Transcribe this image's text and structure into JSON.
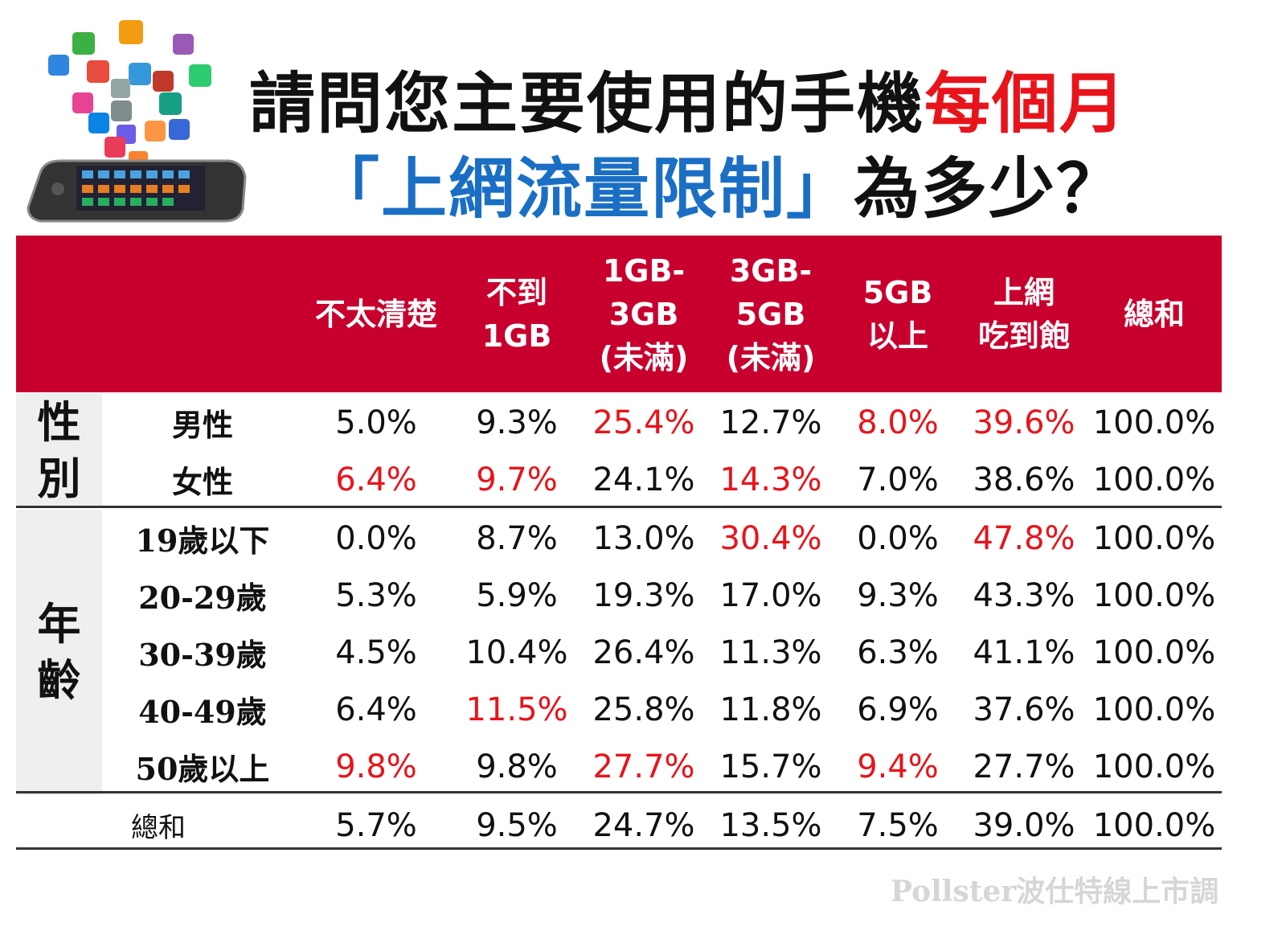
{
  "title": {
    "line1_black": "請問您主要使用的手機",
    "line1_red": "每個月",
    "line2_blue": "「上網流量限制」",
    "line2_black": "為多少？"
  },
  "watermark": "Pollster波仕特線上市調",
  "colors": {
    "header_bg": "#c8002e",
    "highlight": "#e8141b",
    "title_blue": "#1a6fc4",
    "group_bg": "#efefef"
  },
  "chart_data": {
    "type": "table",
    "title": "請問您主要使用的手機每個月「上網流量限制」為多少？",
    "columns": [
      "不太清楚",
      "不到\n1GB",
      "1GB-\n3GB\n(未滿)",
      "3GB-\n5GB\n(未滿)",
      "5GB\n以上",
      "上網\n吃到飽",
      "總和"
    ],
    "groups": [
      {
        "label": "性\n別",
        "rows": [
          0,
          1
        ]
      },
      {
        "label": "年\n齡",
        "rows": [
          2,
          3,
          4,
          5,
          6
        ]
      }
    ],
    "rows": [
      {
        "label": "男性",
        "values": [
          "5.0%",
          "9.3%",
          "25.4%",
          "12.7%",
          "8.0%",
          "39.6%",
          "100.0%"
        ],
        "highlight": [
          false,
          false,
          true,
          false,
          true,
          true,
          false
        ]
      },
      {
        "label": "女性",
        "values": [
          "6.4%",
          "9.7%",
          "24.1%",
          "14.3%",
          "7.0%",
          "38.6%",
          "100.0%"
        ],
        "highlight": [
          true,
          true,
          false,
          true,
          false,
          false,
          false
        ]
      },
      {
        "label": "19歲以下",
        "values": [
          "0.0%",
          "8.7%",
          "13.0%",
          "30.4%",
          "0.0%",
          "47.8%",
          "100.0%"
        ],
        "highlight": [
          false,
          false,
          false,
          true,
          false,
          true,
          false
        ]
      },
      {
        "label": "20-29歲",
        "values": [
          "5.3%",
          "5.9%",
          "19.3%",
          "17.0%",
          "9.3%",
          "43.3%",
          "100.0%"
        ],
        "highlight": [
          false,
          false,
          false,
          false,
          false,
          false,
          false
        ]
      },
      {
        "label": "30-39歲",
        "values": [
          "4.5%",
          "10.4%",
          "26.4%",
          "11.3%",
          "6.3%",
          "41.1%",
          "100.0%"
        ],
        "highlight": [
          false,
          false,
          false,
          false,
          false,
          false,
          false
        ]
      },
      {
        "label": "40-49歲",
        "values": [
          "6.4%",
          "11.5%",
          "25.8%",
          "11.8%",
          "6.9%",
          "37.6%",
          "100.0%"
        ],
        "highlight": [
          false,
          true,
          false,
          false,
          false,
          false,
          false
        ]
      },
      {
        "label": "50歲以上",
        "values": [
          "9.8%",
          "9.8%",
          "27.7%",
          "15.7%",
          "9.4%",
          "27.7%",
          "100.0%"
        ],
        "highlight": [
          true,
          false,
          true,
          false,
          true,
          false,
          false
        ]
      }
    ],
    "total": {
      "label": "總和",
      "values": [
        "5.7%",
        "9.5%",
        "24.7%",
        "13.5%",
        "7.5%",
        "39.0%",
        "100.0%"
      ]
    }
  }
}
